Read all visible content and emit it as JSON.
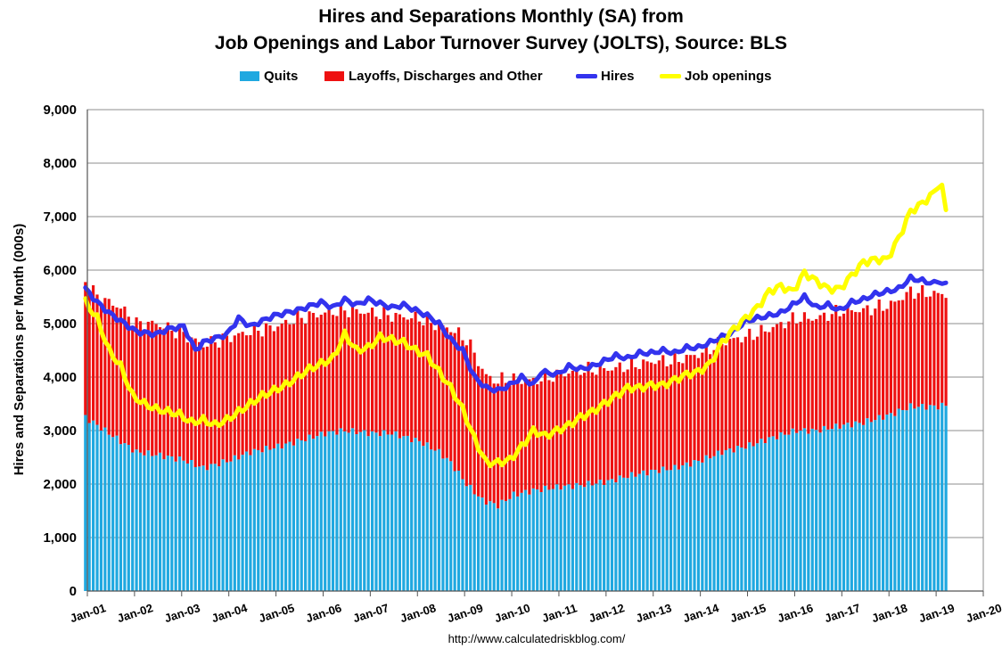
{
  "chart_data": {
    "type": "bar",
    "title": "Hires and Separations Monthly (SA) from",
    "subtitle": "Job Openings and Labor Turnover Survey (JOLTS), Source: BLS",
    "ylabel": "Hires and Separations per Month (000s)",
    "xlabel": "",
    "ylim": [
      0,
      9000
    ],
    "yticks": [
      "0",
      "1,000",
      "2,000",
      "3,000",
      "4,000",
      "5,000",
      "6,000",
      "7,000",
      "8,000",
      "9,000"
    ],
    "xticks": [
      "Jan-01",
      "Jan-02",
      "Jan-03",
      "Jan-04",
      "Jan-05",
      "Jan-06",
      "Jan-07",
      "Jan-08",
      "Jan-09",
      "Jan-10",
      "Jan-11",
      "Jan-12",
      "Jan-13",
      "Jan-14",
      "Jan-15",
      "Jan-16",
      "Jan-17",
      "Jan-18",
      "Jan-19",
      "Jan-20"
    ],
    "grid": true,
    "legend_position": "top",
    "x_start": "2000-12",
    "x_end": "2019-03",
    "series": [
      {
        "name": "Quits",
        "kind": "stacked-bar",
        "color": "#1fa8e0",
        "anchors": [
          [
            "2000-12",
            3250
          ],
          [
            "2001-06",
            2950
          ],
          [
            "2002-01",
            2600
          ],
          [
            "2002-06",
            2550
          ],
          [
            "2003-01",
            2450
          ],
          [
            "2003-06",
            2300
          ],
          [
            "2004-01",
            2450
          ],
          [
            "2004-06",
            2600
          ],
          [
            "2005-01",
            2700
          ],
          [
            "2005-06",
            2800
          ],
          [
            "2006-01",
            2950
          ],
          [
            "2006-06",
            3000
          ],
          [
            "2007-01",
            2950
          ],
          [
            "2007-06",
            2950
          ],
          [
            "2008-01",
            2800
          ],
          [
            "2008-06",
            2600
          ],
          [
            "2008-09",
            2400
          ],
          [
            "2009-01",
            2000
          ],
          [
            "2009-05",
            1700
          ],
          [
            "2009-09",
            1600
          ],
          [
            "2010-01",
            1800
          ],
          [
            "2010-06",
            1880
          ],
          [
            "2011-01",
            1950
          ],
          [
            "2011-06",
            1980
          ],
          [
            "2012-01",
            2050
          ],
          [
            "2012-06",
            2150
          ],
          [
            "2013-01",
            2250
          ],
          [
            "2013-06",
            2300
          ],
          [
            "2014-01",
            2450
          ],
          [
            "2014-06",
            2600
          ],
          [
            "2015-01",
            2720
          ],
          [
            "2015-06",
            2850
          ],
          [
            "2016-01",
            3000
          ],
          [
            "2016-06",
            3000
          ],
          [
            "2017-01",
            3100
          ],
          [
            "2017-06",
            3150
          ],
          [
            "2018-01",
            3300
          ],
          [
            "2018-06",
            3450
          ],
          [
            "2019-01",
            3450
          ],
          [
            "2019-03",
            3480
          ]
        ]
      },
      {
        "name": "Layoffs, Discharges and Other",
        "kind": "stacked-bar",
        "color": "#ee1111",
        "anchors": [
          [
            "2000-12",
            2550
          ],
          [
            "2001-03",
            2400
          ],
          [
            "2001-09",
            2500
          ],
          [
            "2002-01",
            2400
          ],
          [
            "2002-06",
            2450
          ],
          [
            "2003-01",
            2350
          ],
          [
            "2003-06",
            2300
          ],
          [
            "2004-01",
            2300
          ],
          [
            "2004-06",
            2250
          ],
          [
            "2005-01",
            2250
          ],
          [
            "2005-06",
            2300
          ],
          [
            "2006-01",
            2250
          ],
          [
            "2006-06",
            2250
          ],
          [
            "2007-01",
            2250
          ],
          [
            "2007-06",
            2200
          ],
          [
            "2008-01",
            2300
          ],
          [
            "2008-06",
            2350
          ],
          [
            "2008-10",
            2550
          ],
          [
            "2009-01",
            2700
          ],
          [
            "2009-03",
            2600
          ],
          [
            "2009-06",
            2350
          ],
          [
            "2009-10",
            2300
          ],
          [
            "2010-01",
            2150
          ],
          [
            "2010-06",
            2050
          ],
          [
            "2011-01",
            2100
          ],
          [
            "2011-06",
            2150
          ],
          [
            "2012-01",
            2100
          ],
          [
            "2012-06",
            2050
          ],
          [
            "2013-01",
            2050
          ],
          [
            "2013-06",
            2000
          ],
          [
            "2014-01",
            2000
          ],
          [
            "2014-06",
            2050
          ],
          [
            "2015-01",
            2050
          ],
          [
            "2015-06",
            2050
          ],
          [
            "2016-01",
            2100
          ],
          [
            "2016-06",
            2100
          ],
          [
            "2017-01",
            2150
          ],
          [
            "2017-06",
            2100
          ],
          [
            "2018-01",
            2050
          ],
          [
            "2018-06",
            2150
          ],
          [
            "2019-01",
            2100
          ],
          [
            "2019-03",
            2080
          ]
        ]
      },
      {
        "name": "Hires",
        "kind": "line",
        "color": "#3333ee",
        "anchors": [
          [
            "2000-12",
            5650
          ],
          [
            "2001-03",
            5400
          ],
          [
            "2001-06",
            5200
          ],
          [
            "2001-09",
            5050
          ],
          [
            "2002-01",
            4850
          ],
          [
            "2002-06",
            4800
          ],
          [
            "2002-09",
            4900
          ],
          [
            "2003-01",
            4950
          ],
          [
            "2003-04",
            4500
          ],
          [
            "2003-06",
            4650
          ],
          [
            "2003-12",
            4800
          ],
          [
            "2004-03",
            5100
          ],
          [
            "2004-06",
            4950
          ],
          [
            "2004-12",
            5150
          ],
          [
            "2005-06",
            5250
          ],
          [
            "2005-12",
            5400
          ],
          [
            "2006-03",
            5300
          ],
          [
            "2006-06",
            5450
          ],
          [
            "2006-09",
            5350
          ],
          [
            "2006-12",
            5450
          ],
          [
            "2007-06",
            5300
          ],
          [
            "2007-09",
            5350
          ],
          [
            "2007-12",
            5250
          ],
          [
            "2008-03",
            5150
          ],
          [
            "2008-06",
            5000
          ],
          [
            "2008-09",
            4700
          ],
          [
            "2008-12",
            4500
          ],
          [
            "2009-03",
            4000
          ],
          [
            "2009-06",
            3800
          ],
          [
            "2009-09",
            3750
          ],
          [
            "2009-12",
            3850
          ],
          [
            "2010-03",
            4000
          ],
          [
            "2010-06",
            3850
          ],
          [
            "2010-08",
            4100
          ],
          [
            "2010-12",
            4050
          ],
          [
            "2011-03",
            4200
          ],
          [
            "2011-06",
            4150
          ],
          [
            "2011-09",
            4200
          ],
          [
            "2011-12",
            4300
          ],
          [
            "2012-03",
            4400
          ],
          [
            "2012-06",
            4350
          ],
          [
            "2012-09",
            4450
          ],
          [
            "2012-12",
            4450
          ],
          [
            "2013-03",
            4500
          ],
          [
            "2013-06",
            4450
          ],
          [
            "2013-09",
            4550
          ],
          [
            "2013-12",
            4550
          ],
          [
            "2014-03",
            4650
          ],
          [
            "2014-06",
            4750
          ],
          [
            "2014-09",
            4850
          ],
          [
            "2014-12",
            5050
          ],
          [
            "2015-03",
            5100
          ],
          [
            "2015-06",
            5150
          ],
          [
            "2015-09",
            5200
          ],
          [
            "2015-12",
            5350
          ],
          [
            "2016-03",
            5500
          ],
          [
            "2016-06",
            5300
          ],
          [
            "2016-09",
            5350
          ],
          [
            "2016-12",
            5250
          ],
          [
            "2017-03",
            5400
          ],
          [
            "2017-06",
            5450
          ],
          [
            "2017-09",
            5550
          ],
          [
            "2017-12",
            5600
          ],
          [
            "2018-03",
            5650
          ],
          [
            "2018-06",
            5850
          ],
          [
            "2018-09",
            5800
          ],
          [
            "2018-12",
            5750
          ],
          [
            "2019-01",
            5800
          ],
          [
            "2019-03",
            5720
          ]
        ]
      },
      {
        "name": "Job openings",
        "kind": "line",
        "color": "#ffff00",
        "anchors": [
          [
            "2000-12",
            5400
          ],
          [
            "2001-03",
            5100
          ],
          [
            "2001-06",
            4500
          ],
          [
            "2001-09",
            4200
          ],
          [
            "2001-12",
            3650
          ],
          [
            "2002-03",
            3500
          ],
          [
            "2002-06",
            3400
          ],
          [
            "2002-09",
            3350
          ],
          [
            "2002-12",
            3300
          ],
          [
            "2003-03",
            3150
          ],
          [
            "2003-06",
            3200
          ],
          [
            "2003-09",
            3100
          ],
          [
            "2003-12",
            3200
          ],
          [
            "2004-03",
            3350
          ],
          [
            "2004-06",
            3500
          ],
          [
            "2004-09",
            3650
          ],
          [
            "2004-12",
            3750
          ],
          [
            "2005-03",
            3850
          ],
          [
            "2005-06",
            4000
          ],
          [
            "2005-09",
            4150
          ],
          [
            "2005-12",
            4250
          ],
          [
            "2006-03",
            4350
          ],
          [
            "2006-06",
            4800
          ],
          [
            "2006-09",
            4500
          ],
          [
            "2006-12",
            4550
          ],
          [
            "2007-03",
            4750
          ],
          [
            "2007-06",
            4700
          ],
          [
            "2007-09",
            4650
          ],
          [
            "2007-12",
            4500
          ],
          [
            "2008-03",
            4400
          ],
          [
            "2008-06",
            4100
          ],
          [
            "2008-09",
            3800
          ],
          [
            "2008-12",
            3400
          ],
          [
            "2009-03",
            2850
          ],
          [
            "2009-06",
            2400
          ],
          [
            "2009-09",
            2400
          ],
          [
            "2009-12",
            2450
          ],
          [
            "2010-03",
            2700
          ],
          [
            "2010-06",
            3000
          ],
          [
            "2010-09",
            2900
          ],
          [
            "2010-12",
            3000
          ],
          [
            "2011-03",
            3100
          ],
          [
            "2011-06",
            3250
          ],
          [
            "2011-09",
            3350
          ],
          [
            "2011-12",
            3500
          ],
          [
            "2012-03",
            3650
          ],
          [
            "2012-06",
            3800
          ],
          [
            "2012-09",
            3800
          ],
          [
            "2012-12",
            3850
          ],
          [
            "2013-03",
            3850
          ],
          [
            "2013-06",
            3950
          ],
          [
            "2013-09",
            4050
          ],
          [
            "2013-12",
            4100
          ],
          [
            "2014-03",
            4250
          ],
          [
            "2014-06",
            4650
          ],
          [
            "2014-09",
            4900
          ],
          [
            "2014-12",
            5100
          ],
          [
            "2015-03",
            5300
          ],
          [
            "2015-06",
            5600
          ],
          [
            "2015-09",
            5700
          ],
          [
            "2015-12",
            5600
          ],
          [
            "2016-03",
            5950
          ],
          [
            "2016-06",
            5800
          ],
          [
            "2016-09",
            5650
          ],
          [
            "2016-12",
            5650
          ],
          [
            "2017-03",
            5900
          ],
          [
            "2017-06",
            6150
          ],
          [
            "2017-09",
            6200
          ],
          [
            "2017-12",
            6200
          ],
          [
            "2018-03",
            6600
          ],
          [
            "2018-06",
            7100
          ],
          [
            "2018-09",
            7250
          ],
          [
            "2018-12",
            7450
          ],
          [
            "2019-01",
            7600
          ],
          [
            "2019-02",
            7550
          ],
          [
            "2019-03",
            7100
          ]
        ]
      }
    ]
  },
  "legend": {
    "items": [
      {
        "label": "Quits",
        "color": "#1fa8e0"
      },
      {
        "label": "Layoffs, Discharges and Other",
        "color": "#ee1111"
      },
      {
        "label": "Hires",
        "color": "#3333ee"
      },
      {
        "label": "Job openings",
        "color": "#ffff00"
      }
    ]
  },
  "footer": {
    "source": "http://www.calculatedriskblog.com/"
  }
}
